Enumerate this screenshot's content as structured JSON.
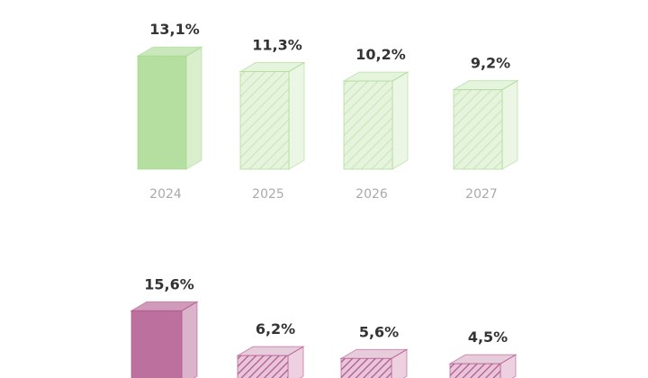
{
  "chart_data": [
    {
      "type": "bar",
      "categories": [
        "2024",
        "2025",
        "2026",
        "2027"
      ],
      "values": [
        13.1,
        11.3,
        10.2,
        9.2
      ],
      "value_labels": [
        "13,1%",
        "11,3%",
        "10,2%",
        "9,2%"
      ],
      "color": "#a8d98f"
    },
    {
      "type": "bar",
      "values": [
        15.6,
        6.2,
        5.6,
        4.5
      ],
      "value_labels": [
        "15,6%",
        "6,2%",
        "5,6%",
        "4,5%"
      ],
      "color": "#b0578c"
    }
  ]
}
